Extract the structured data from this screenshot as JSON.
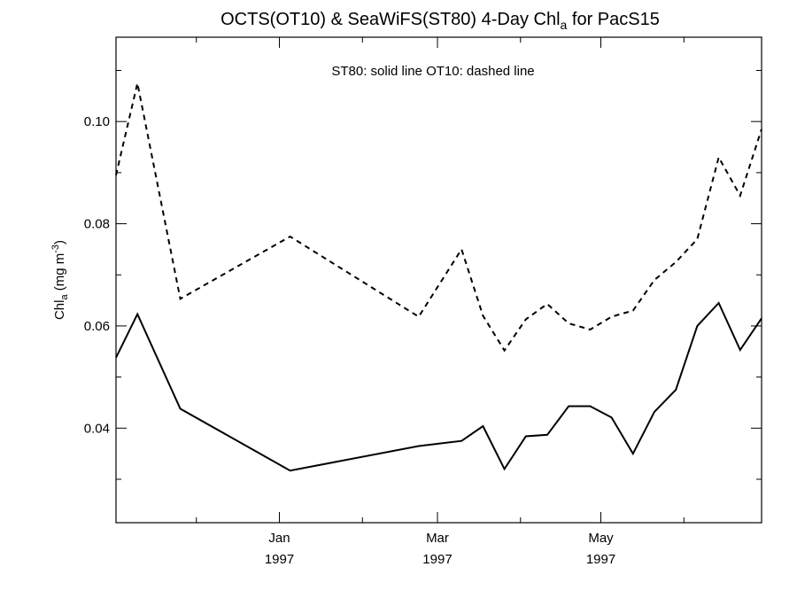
{
  "chart_data": {
    "type": "line",
    "title": {
      "main": "OCTS(OT10) & SeaWiFS(ST80) 4-Day Chl",
      "sub": "a",
      "suffix": " for PacS15"
    },
    "ylabel": {
      "prefix": "Chl",
      "sub": "a",
      "unit": " (mg m",
      "sup": "-3",
      "close": ")"
    },
    "legend_note": "ST80: solid line   OT10: dashed line",
    "x_axis": {
      "domain": [
        "1996-11-01",
        "1997-06-30"
      ],
      "major_ticks": [
        {
          "date": "1997-01-01",
          "label_month": "Jan",
          "label_year": "1997"
        },
        {
          "date": "1997-03-01",
          "label_month": "Mar",
          "label_year": "1997"
        },
        {
          "date": "1997-05-01",
          "label_month": "May",
          "label_year": "1997"
        }
      ],
      "minor_ticks": [
        "1996-12-01",
        "1997-02-01",
        "1997-04-01",
        "1997-06-01"
      ]
    },
    "y_axis": {
      "ylim": [
        0.0215,
        0.1165
      ],
      "major_ticks": [
        0.04,
        0.06,
        0.08,
        0.1
      ],
      "tick_labels": [
        "0.04",
        "0.06",
        "0.08",
        "0.10"
      ],
      "minor_step": 0.01
    },
    "series": [
      {
        "name": "ST80",
        "style": "solid",
        "points": [
          {
            "x": "1996-11-01",
            "y": 0.0538
          },
          {
            "x": "1996-11-09",
            "y": 0.0623
          },
          {
            "x": "1996-11-25",
            "y": 0.0438
          },
          {
            "x": "1997-01-05",
            "y": 0.0317
          },
          {
            "x": "1997-02-22",
            "y": 0.0365
          },
          {
            "x": "1997-03-10",
            "y": 0.0375
          },
          {
            "x": "1997-03-18",
            "y": 0.0404
          },
          {
            "x": "1997-03-26",
            "y": 0.032
          },
          {
            "x": "1997-04-03",
            "y": 0.0384
          },
          {
            "x": "1997-04-11",
            "y": 0.0387
          },
          {
            "x": "1997-04-19",
            "y": 0.0443
          },
          {
            "x": "1997-04-27",
            "y": 0.0443
          },
          {
            "x": "1997-05-05",
            "y": 0.0421
          },
          {
            "x": "1997-05-13",
            "y": 0.035
          },
          {
            "x": "1997-05-21",
            "y": 0.0432
          },
          {
            "x": "1997-05-29",
            "y": 0.0475
          },
          {
            "x": "1997-06-06",
            "y": 0.06
          },
          {
            "x": "1997-06-14",
            "y": 0.0645
          },
          {
            "x": "1997-06-22",
            "y": 0.0553
          },
          {
            "x": "1997-06-30",
            "y": 0.0615
          }
        ]
      },
      {
        "name": "OT10",
        "style": "dashed",
        "points": [
          {
            "x": "1996-11-01",
            "y": 0.0895
          },
          {
            "x": "1996-11-09",
            "y": 0.1075
          },
          {
            "x": "1996-11-25",
            "y": 0.0653
          },
          {
            "x": "1997-01-05",
            "y": 0.0775
          },
          {
            "x": "1997-02-22",
            "y": 0.0618
          },
          {
            "x": "1997-03-10",
            "y": 0.075
          },
          {
            "x": "1997-03-18",
            "y": 0.062
          },
          {
            "x": "1997-03-26",
            "y": 0.0552
          },
          {
            "x": "1997-04-03",
            "y": 0.0613
          },
          {
            "x": "1997-04-11",
            "y": 0.0643
          },
          {
            "x": "1997-04-19",
            "y": 0.0605
          },
          {
            "x": "1997-04-27",
            "y": 0.0593
          },
          {
            "x": "1997-05-05",
            "y": 0.0618
          },
          {
            "x": "1997-05-13",
            "y": 0.063
          },
          {
            "x": "1997-05-21",
            "y": 0.069
          },
          {
            "x": "1997-05-29",
            "y": 0.0725
          },
          {
            "x": "1997-06-06",
            "y": 0.077
          },
          {
            "x": "1997-06-14",
            "y": 0.093
          },
          {
            "x": "1997-06-22",
            "y": 0.0855
          },
          {
            "x": "1997-06-30",
            "y": 0.0985
          }
        ]
      }
    ],
    "grid": false,
    "colors": {
      "line": "#000000",
      "background": "#ffffff"
    }
  }
}
